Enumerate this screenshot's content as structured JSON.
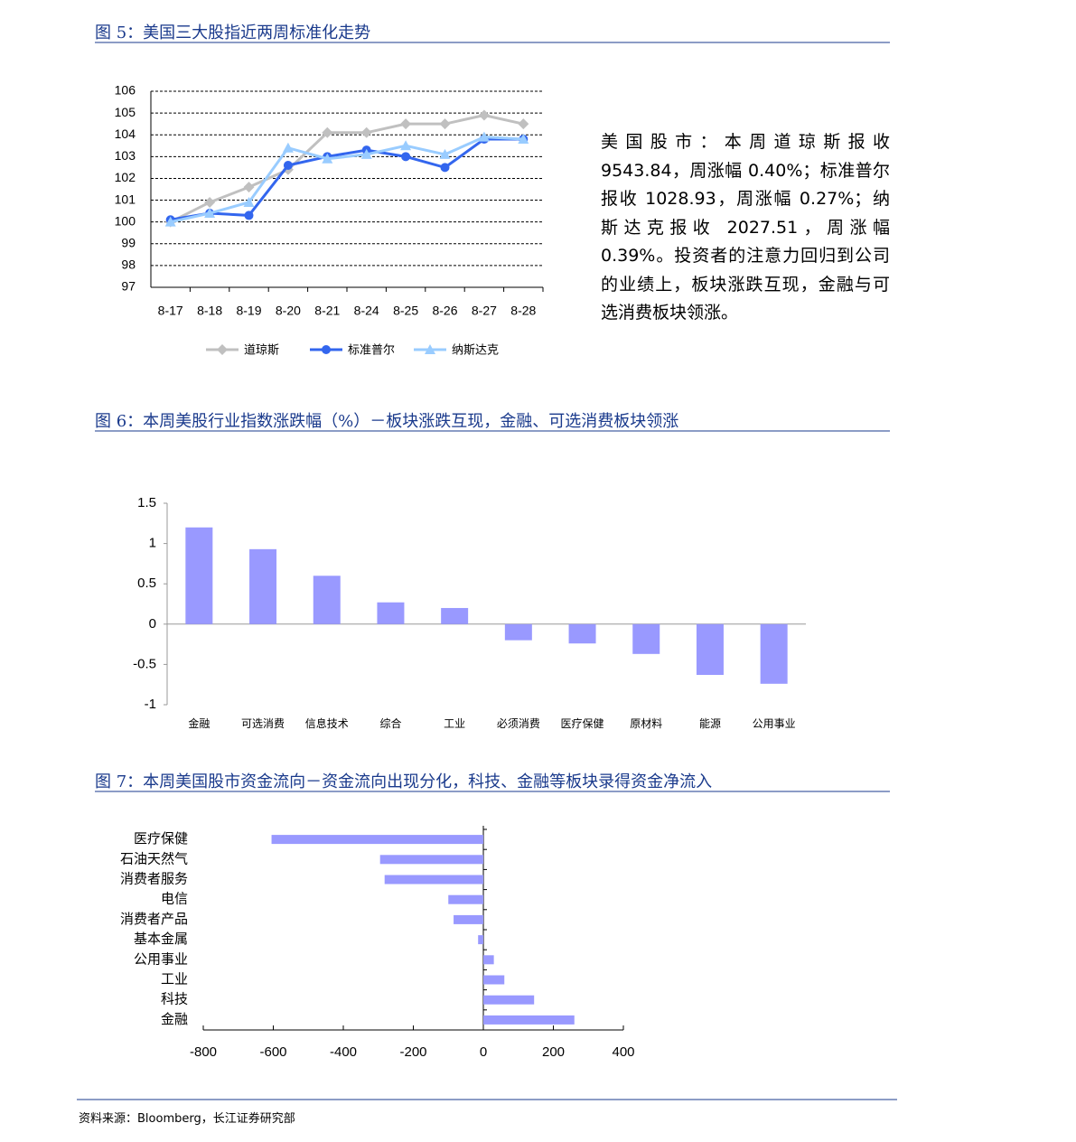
{
  "chart_data": [
    {
      "type": "line",
      "title": "图 5：美国三大股指近两周标准化走势",
      "categories": [
        "8-17",
        "8-18",
        "8-19",
        "8-20",
        "8-21",
        "8-24",
        "8-25",
        "8-26",
        "8-27",
        "8-28"
      ],
      "series": [
        {
          "name": "道琼斯",
          "color": "#c0c0c0",
          "marker": "diamond",
          "values": [
            100.0,
            100.9,
            101.6,
            102.4,
            104.1,
            104.1,
            104.5,
            104.5,
            104.9,
            104.5
          ]
        },
        {
          "name": "标准普尔",
          "color": "#3366ee",
          "marker": "circle",
          "values": [
            100.1,
            100.4,
            100.3,
            102.6,
            103.0,
            103.3,
            103.0,
            102.5,
            103.8,
            103.8
          ]
        },
        {
          "name": "纳斯达克",
          "color": "#99ccff",
          "marker": "triangle",
          "values": [
            100.0,
            100.4,
            100.9,
            103.4,
            102.9,
            103.1,
            103.5,
            103.1,
            103.9,
            103.8
          ]
        }
      ],
      "ylim": [
        97,
        106
      ],
      "yticks": [
        97,
        98,
        99,
        100,
        101,
        102,
        103,
        104,
        105,
        106
      ],
      "grid": true,
      "legend": "bottom"
    },
    {
      "type": "bar",
      "title": "图 6：本周美股行业指数涨跌幅（%）－板块涨跌互现，金融、可选消费板块领涨",
      "categories": [
        "金融",
        "可选消费",
        "信息技术",
        "综合",
        "工业",
        "必须消费",
        "医疗保健",
        "原材料",
        "能源",
        "公用事业"
      ],
      "values": [
        1.2,
        0.93,
        0.6,
        0.27,
        0.2,
        -0.2,
        -0.24,
        -0.37,
        -0.63,
        -0.74
      ],
      "color": "#9999ff",
      "ylim": [
        -1,
        1.5
      ],
      "yticks": [
        -1,
        -0.5,
        0,
        0.5,
        1,
        1.5
      ]
    },
    {
      "type": "hbar",
      "title": "图 7：本周美国股市资金流向－资金流向出现分化，科技、金融等板块录得资金净流入",
      "categories": [
        "医疗保健",
        "石油天然气",
        "消费者服务",
        "电信",
        "消费者产品",
        "基本金属",
        "公用事业",
        "工业",
        "科技",
        "金融"
      ],
      "values": [
        -605,
        -295,
        -282,
        -100,
        -85,
        -15,
        30,
        60,
        145,
        260
      ],
      "color": "#9999ff",
      "xlim": [
        -800,
        400
      ],
      "xticks": [
        -800,
        -600,
        -400,
        -200,
        0,
        200,
        400
      ]
    }
  ],
  "text": "美国股市：本周道琼斯报收9543.84，周涨幅 0.40%；标准普尔报收 1028.93，周涨幅 0.27%；纳斯达克报收 2027.51，周涨幅 0.39%。投资者的注意力回归到公司的业绩上，板块涨跌互现，金融与可选消费板块领涨。",
  "source": "资料来源：Bloomberg，长江证券研究部"
}
